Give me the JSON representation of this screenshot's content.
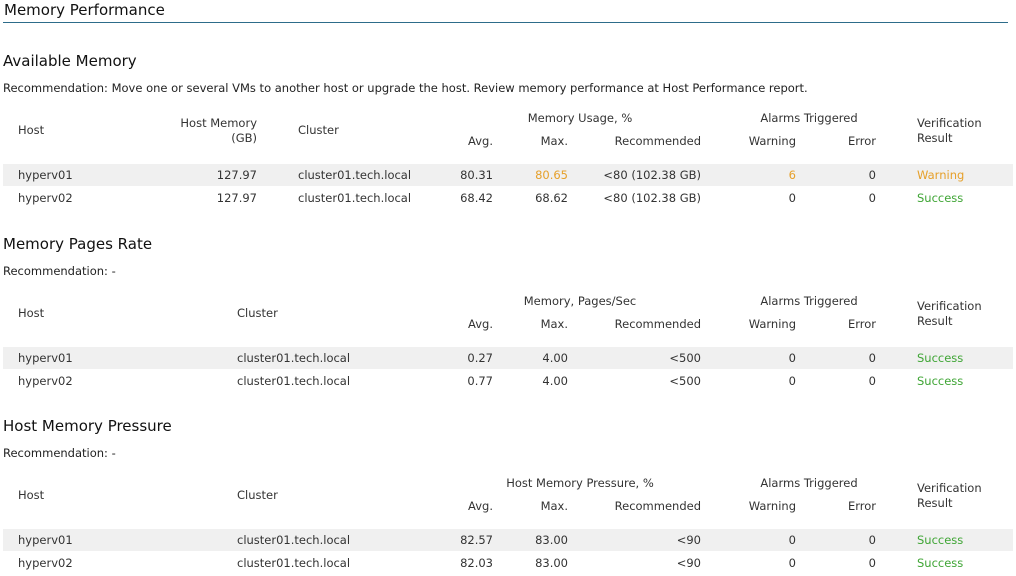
{
  "page": {
    "title": "Memory Performance"
  },
  "colors": {
    "warning": "#e6a02a",
    "success": "#3fa535",
    "rule": "#2d6c8a",
    "row_alt": "#f0f0f0"
  },
  "sections": [
    {
      "title": "Available Memory",
      "recommendation": "Recommendation: Move one or several VMs to another host or upgrade the host. Review memory performance at Host Performance report.",
      "headers": {
        "host": "Host",
        "host_memory": "Host Memory",
        "host_memory_unit": "(GB)",
        "cluster": "Cluster",
        "group": "Memory Usage, %",
        "avg": "Avg.",
        "max": "Max.",
        "recommended": "Recommended",
        "alarms": "Alarms Triggered",
        "warning": "Warning",
        "error": "Error",
        "verification_1": "Verification",
        "verification_2": "Result"
      },
      "rows": [
        {
          "host": "hyperv01",
          "host_memory": "127.97",
          "cluster": "cluster01.tech.local",
          "avg": "80.31",
          "max": "80.65",
          "max_status": "warning",
          "recommended": "<80 (102.38 GB)",
          "warning": "6",
          "warning_status": "warning",
          "error": "0",
          "result": "Warning",
          "result_status": "warning"
        },
        {
          "host": "hyperv02",
          "host_memory": "127.97",
          "cluster": "cluster01.tech.local",
          "avg": "68.42",
          "max": "68.62",
          "max_status": "normal",
          "recommended": "<80 (102.38 GB)",
          "warning": "0",
          "warning_status": "normal",
          "error": "0",
          "result": "Success",
          "result_status": "success"
        }
      ]
    },
    {
      "title": "Memory Pages Rate",
      "recommendation": "Recommendation: -",
      "headers": {
        "host": "Host",
        "cluster": "Cluster",
        "group": "Memory, Pages/Sec",
        "avg": "Avg.",
        "max": "Max.",
        "recommended": "Recommended",
        "alarms": "Alarms Triggered",
        "warning": "Warning",
        "error": "Error",
        "verification_1": "Verification",
        "verification_2": "Result"
      },
      "rows": [
        {
          "host": "hyperv01",
          "cluster": "cluster01.tech.local",
          "avg": "0.27",
          "max": "4.00",
          "recommended": "<500",
          "warning": "0",
          "error": "0",
          "result": "Success",
          "result_status": "success"
        },
        {
          "host": "hyperv02",
          "cluster": "cluster01.tech.local",
          "avg": "0.77",
          "max": "4.00",
          "recommended": "<500",
          "warning": "0",
          "error": "0",
          "result": "Success",
          "result_status": "success"
        }
      ]
    },
    {
      "title": "Host Memory Pressure",
      "recommendation": "Recommendation: -",
      "headers": {
        "host": "Host",
        "cluster": "Cluster",
        "group": "Host Memory Pressure, %",
        "avg": "Avg.",
        "max": "Max.",
        "recommended": "Recommended",
        "alarms": "Alarms Triggered",
        "warning": "Warning",
        "error": "Error",
        "verification_1": "Verification",
        "verification_2": "Result"
      },
      "rows": [
        {
          "host": "hyperv01",
          "cluster": "cluster01.tech.local",
          "avg": "82.57",
          "max": "83.00",
          "recommended": "<90",
          "warning": "0",
          "error": "0",
          "result": "Success",
          "result_status": "success"
        },
        {
          "host": "hyperv02",
          "cluster": "cluster01.tech.local",
          "avg": "82.03",
          "max": "83.00",
          "recommended": "<90",
          "warning": "0",
          "error": "0",
          "result": "Success",
          "result_status": "success"
        }
      ]
    }
  ]
}
